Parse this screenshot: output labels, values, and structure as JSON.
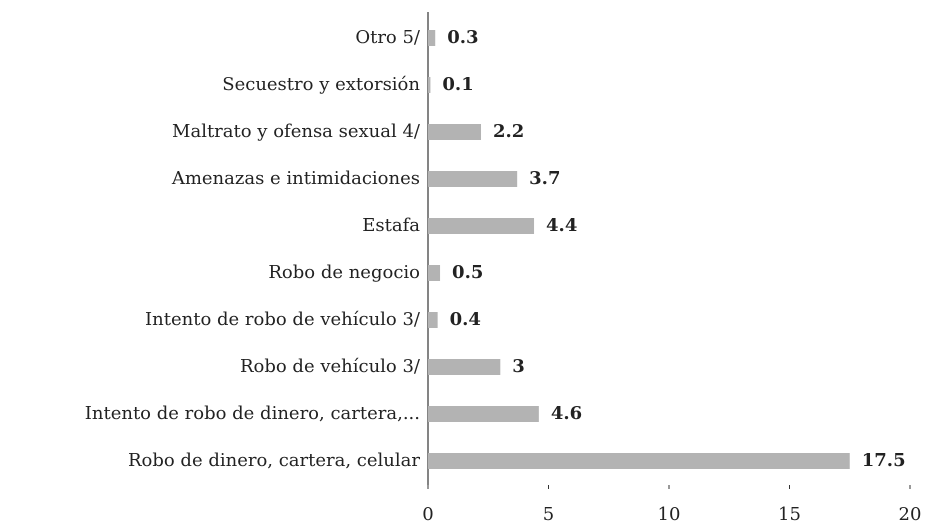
{
  "chart_data": {
    "type": "bar",
    "orientation": "horizontal",
    "categories": [
      "Otro 5/",
      "Secuestro y extorsión",
      "Maltrato y ofensa sexual 4/",
      "Amenazas e intimidaciones",
      "Estafa",
      "Robo de negocio",
      "Intento de robo de vehículo 3/",
      "Robo de vehículo 3/",
      "Intento de robo de dinero, cartera,...",
      "Robo de dinero, cartera, celular"
    ],
    "values": [
      0.3,
      0.1,
      2.2,
      3.7,
      4.4,
      0.5,
      0.4,
      3,
      4.6,
      17.5
    ],
    "color": "#b3b3b3",
    "xlim": [
      0,
      20
    ],
    "xticks": [
      0,
      5,
      10,
      15,
      20
    ],
    "grid": false
  }
}
